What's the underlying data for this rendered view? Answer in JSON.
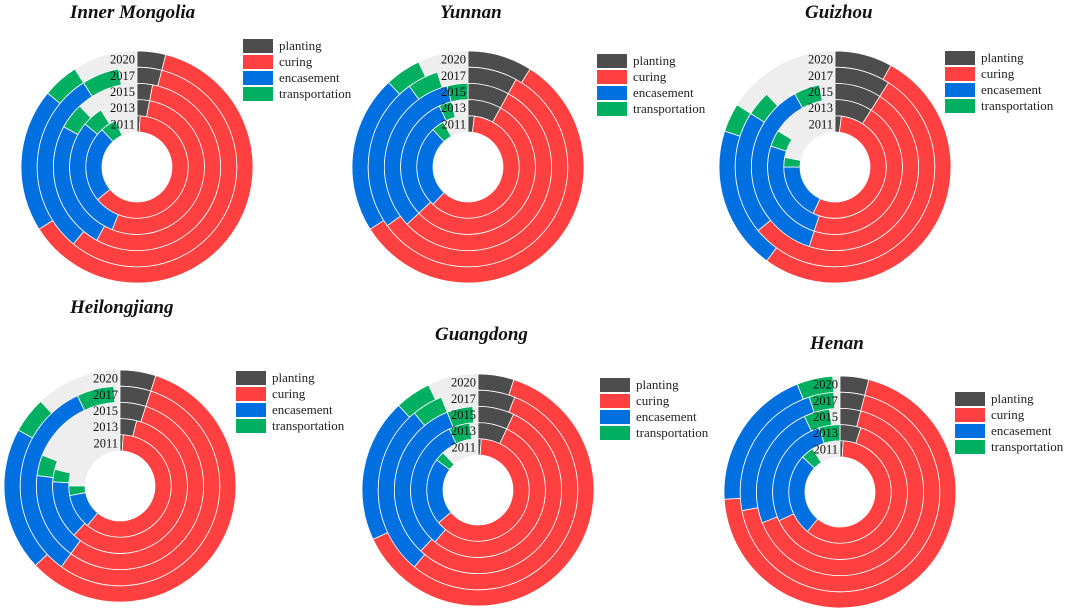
{
  "chart_data": {
    "type": "radial-bar",
    "unit": "percent of full circle (estimated)",
    "legend": [
      "planting",
      "curing",
      "encasement",
      "transportation"
    ],
    "colors": {
      "planting": "#4d4d4d",
      "curing": "#ff4040",
      "encasement": "#0070e0",
      "transportation": "#00b060",
      "track": "#eeeeee"
    },
    "years": [
      "2020",
      "2017",
      "2015",
      "2013",
      "2011"
    ],
    "charts": [
      {
        "title": "Inner Mongolia",
        "series": [
          {
            "year": "2020",
            "values": [
              4,
              62,
              20,
              5
            ]
          },
          {
            "year": "2017",
            "values": [
              4,
              57,
              30,
              6
            ]
          },
          {
            "year": "2015",
            "values": [
              3,
              55,
              25,
              5
            ]
          },
          {
            "year": "2013",
            "values": [
              3,
              53,
              30,
              5
            ]
          },
          {
            "year": "2011",
            "values": [
              1,
              63,
              24,
              5
            ]
          }
        ]
      },
      {
        "title": "Yunnan",
        "series": [
          {
            "year": "2020",
            "values": [
              9,
              57,
              22,
              5
            ]
          },
          {
            "year": "2017",
            "values": [
              8,
              57,
              25,
              5
            ]
          },
          {
            "year": "2015",
            "values": [
              8,
              55,
              33,
              4
            ]
          },
          {
            "year": "2013",
            "values": [
              8,
              55,
              30,
              3
            ]
          },
          {
            "year": "2011",
            "values": [
              2,
              60,
              26,
              4
            ]
          }
        ]
      },
      {
        "title": "Guizhou",
        "series": [
          {
            "year": "2020",
            "values": [
              8,
              52,
              20,
              4
            ]
          },
          {
            "year": "2017",
            "values": [
              9,
              55,
              20,
              4
            ]
          },
          {
            "year": "2015",
            "values": [
              9,
              46,
              37,
              5
            ]
          },
          {
            "year": "2013",
            "values": [
              9,
              46,
              25,
              4
            ]
          },
          {
            "year": "2011",
            "values": [
              2,
              55,
              18,
              3
            ]
          }
        ]
      },
      {
        "title": "Heilongjiang",
        "series": [
          {
            "year": "2020",
            "values": [
              5,
              58,
              20,
              5
            ]
          },
          {
            "year": "2017",
            "values": [
              5,
              55,
              33,
              6
            ]
          },
          {
            "year": "2015",
            "values": [
              5,
              55,
              17,
              4
            ]
          },
          {
            "year": "2013",
            "values": [
              4,
              58,
              14,
              3
            ]
          },
          {
            "year": "2011",
            "values": [
              1,
              60,
              11,
              3
            ]
          }
        ]
      },
      {
        "title": "Guangdong",
        "series": [
          {
            "year": "2020",
            "values": [
              5,
              63,
              20,
              5
            ]
          },
          {
            "year": "2017",
            "values": [
              6,
              55,
              28,
              5
            ]
          },
          {
            "year": "2015",
            "values": [
              7,
              55,
              32,
              5
            ]
          },
          {
            "year": "2013",
            "values": [
              7,
              54,
              32,
              5
            ]
          },
          {
            "year": "2011",
            "values": [
              1,
              63,
              21,
              3
            ]
          }
        ]
      },
      {
        "title": "Henan",
        "series": [
          {
            "year": "2020",
            "values": [
              4,
              70,
              20,
              5
            ]
          },
          {
            "year": "2017",
            "values": [
              4,
              68,
              23,
              4
            ]
          },
          {
            "year": "2015",
            "values": [
              4,
              65,
              24,
              5
            ]
          },
          {
            "year": "2013",
            "values": [
              5,
              63,
              27,
              5
            ]
          },
          {
            "year": "2011",
            "values": [
              1,
              60,
              26,
              4
            ]
          }
        ]
      }
    ]
  }
}
